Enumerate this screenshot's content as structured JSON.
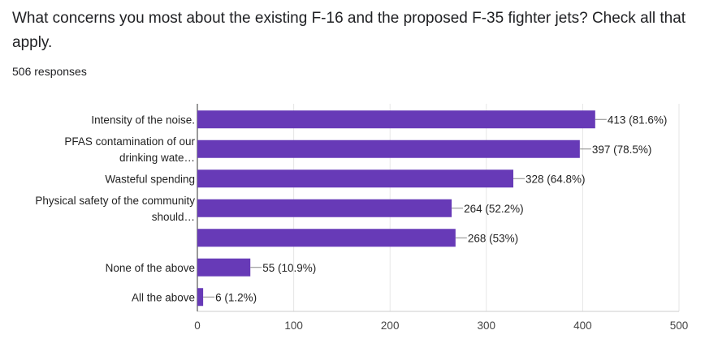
{
  "question": "What concerns you most about the existing F-16 and the proposed F-35 fighter jets? Check all that apply.",
  "responses": "506 responses",
  "colors": {
    "bar": "#673ab7",
    "grid": "#e6e6e6",
    "axis": "#333333",
    "leader": "#888888"
  },
  "chart_data": {
    "type": "bar",
    "orientation": "horizontal",
    "categories": [
      [
        "Intensity of the noise."
      ],
      [
        "PFAS contamination of our",
        "drinking wate…"
      ],
      [
        "Wasteful spending"
      ],
      [
        "Physical safety of the community",
        "should…"
      ],
      [
        ""
      ],
      [
        "None of the above"
      ],
      [
        "All the above"
      ]
    ],
    "values": [
      413,
      397,
      328,
      264,
      268,
      55,
      6
    ],
    "value_labels": [
      "413 (81.6%)",
      "397 (78.5%)",
      "328 (64.8%)",
      "264 (52.2%)",
      "268 (53%)",
      "55 (10.9%)",
      "6 (1.2%)"
    ],
    "xlim": [
      0,
      500
    ],
    "xticks": [
      0,
      100,
      200,
      300,
      400,
      500
    ],
    "grid": true
  }
}
